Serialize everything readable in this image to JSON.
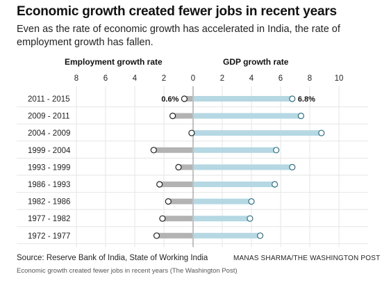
{
  "header": {
    "title": "Economic growth created fewer jobs in recent years",
    "subtitle": "Even as the rate of economic growth has accelerated in India, the rate of employment growth has fallen."
  },
  "footer": {
    "source": "Source: Reserve Bank of India, State of Working India",
    "credit": "MANAS SHARMA/THE WASHINGTON POST",
    "caption": "Economic growth created fewer jobs in recent years (The Washington Post)"
  },
  "colors": {
    "employment_bar": "#b3b3b3",
    "gdp_bar": "#b5d8e3",
    "marker_fill": "#ffffff",
    "marker_stroke": "#222222",
    "grid": "#e6e6e6",
    "axis": "#999999"
  },
  "chart_data": {
    "type": "bar",
    "categories": [
      "2011 - 2015",
      "2009 - 2011",
      "2004 - 2009",
      "1999 - 2004",
      "1993 - 1999",
      "1986 - 1993",
      "1982 - 1986",
      "1977 - 1982",
      "1972 - 1977"
    ],
    "series": [
      {
        "name": "Employment growth rate",
        "values": [
          0.6,
          1.4,
          0.1,
          2.7,
          1.0,
          2.3,
          1.7,
          2.1,
          2.5
        ]
      },
      {
        "name": "GDP growth rate",
        "values": [
          6.8,
          7.4,
          8.8,
          5.7,
          6.8,
          5.6,
          4.0,
          3.9,
          4.6
        ]
      }
    ],
    "employment_ticks": [
      "8",
      "6",
      "4",
      "2",
      "0"
    ],
    "gdp_ticks": [
      "0",
      "2",
      "4",
      "6",
      "8",
      "10"
    ],
    "employment_xlim": [
      0,
      8
    ],
    "gdp_xlim": [
      0,
      10
    ],
    "annotations": [
      {
        "series": "Employment growth rate",
        "category": "2011 - 2015",
        "text": "0.6%"
      },
      {
        "series": "GDP growth rate",
        "category": "2011 - 2015",
        "text": "6.8%"
      }
    ],
    "grid": true
  }
}
